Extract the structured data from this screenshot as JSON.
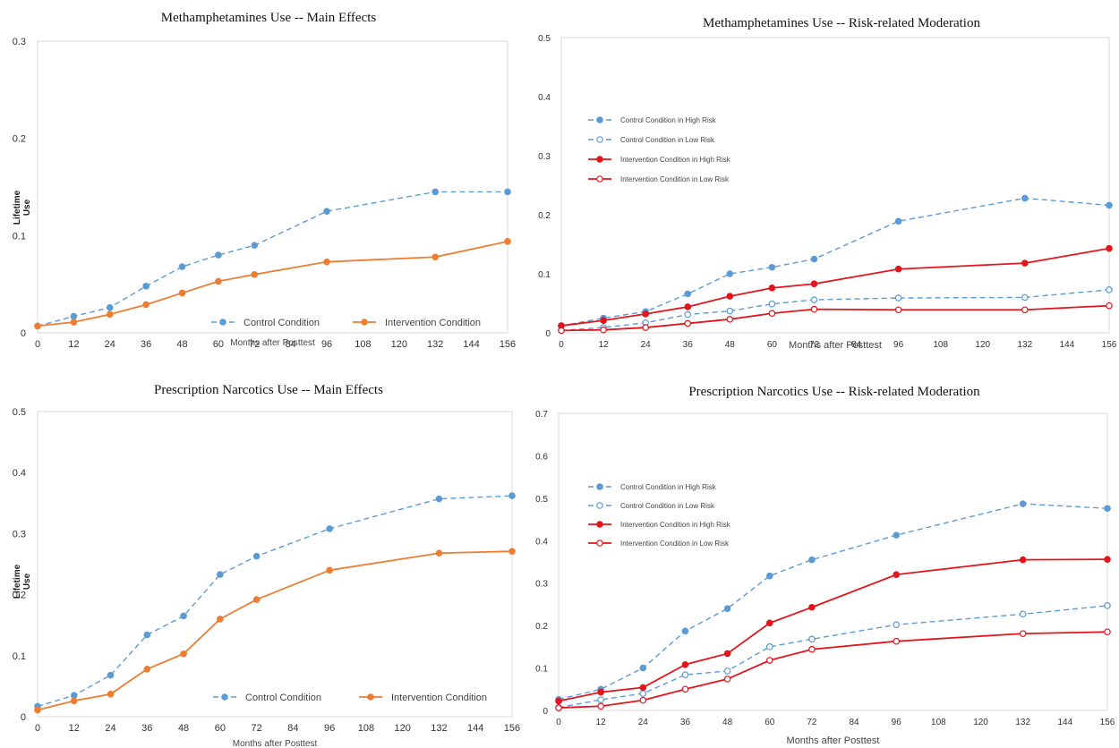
{
  "colors": {
    "control": "#5b9bd5",
    "intervention_main": "#ed7d31",
    "intervention_risk": "#e3141b"
  },
  "chart_data": [
    {
      "type": "line",
      "title": "Methamphetamines Use -- Main Effects",
      "xlabel": "Months after Posttest",
      "ylabel": "Lifetime Use",
      "x": [
        0,
        12,
        24,
        36,
        48,
        60,
        72,
        96,
        132,
        156
      ],
      "xticks": [
        "0",
        "12",
        "24",
        "36",
        "48",
        "60",
        "72",
        "84",
        "96",
        "108",
        "120",
        "132",
        "144",
        "156"
      ],
      "xlim": [
        0,
        156
      ],
      "yticks": [
        "0",
        "0.1",
        "0.2",
        "0.3"
      ],
      "ylim": [
        0,
        0.3
      ],
      "grid": false,
      "legend": "bottom-right",
      "series": [
        {
          "name": "Control Condition",
          "style": "dashed",
          "marker": "filled",
          "color": "#5b9bd5",
          "values": [
            0.007,
            0.017,
            0.026,
            0.048,
            0.068,
            0.08,
            0.09,
            0.125,
            0.145,
            0.145
          ]
        },
        {
          "name": "Intervention Condition",
          "style": "solid",
          "marker": "filled",
          "color": "#ed7d31",
          "values": [
            0.007,
            0.011,
            0.019,
            0.029,
            0.041,
            0.053,
            0.06,
            0.073,
            0.078,
            0.094
          ]
        }
      ]
    },
    {
      "type": "line",
      "title": "Methamphetamines Use -- Risk-related Moderation",
      "xlabel": "Months after Posttest",
      "ylabel": "",
      "x": [
        0,
        12,
        24,
        36,
        48,
        60,
        72,
        96,
        132,
        156
      ],
      "xticks": [
        "0",
        "12",
        "24",
        "36",
        "48",
        "60",
        "72",
        "84",
        "96",
        "108",
        "120",
        "132",
        "144",
        "156"
      ],
      "xlim": [
        0,
        156
      ],
      "yticks": [
        "0",
        "0.1",
        "0.2",
        "0.3",
        "0.4",
        "0.5"
      ],
      "ylim": [
        0,
        0.5
      ],
      "grid": false,
      "legend": "top-left",
      "series": [
        {
          "name": "Control Condition in High Risk",
          "style": "dashed",
          "marker": "filled",
          "color": "#5b9bd5",
          "values": [
            0.012,
            0.025,
            0.036,
            0.066,
            0.1,
            0.111,
            0.125,
            0.189,
            0.228,
            0.216
          ]
        },
        {
          "name": "Control Condition in Low Risk",
          "style": "dashed",
          "marker": "open",
          "color": "#5b9bd5",
          "values": [
            0.004,
            0.009,
            0.017,
            0.031,
            0.037,
            0.049,
            0.056,
            0.059,
            0.06,
            0.073
          ]
        },
        {
          "name": "Intervention Condition in High Risk",
          "style": "solid",
          "marker": "filled",
          "color": "#e3141b",
          "values": [
            0.012,
            0.021,
            0.032,
            0.044,
            0.062,
            0.076,
            0.083,
            0.108,
            0.118,
            0.143
          ]
        },
        {
          "name": "Intervention Condition in Low Risk",
          "style": "solid",
          "marker": "open",
          "color": "#e3141b",
          "values": [
            0.004,
            0.005,
            0.009,
            0.016,
            0.023,
            0.033,
            0.04,
            0.039,
            0.039,
            0.046
          ]
        }
      ]
    },
    {
      "type": "line",
      "title": "Prescription Narcotics Use -- Main Effects",
      "xlabel": "Months after Posttest",
      "ylabel": "Lifetime Use",
      "x": [
        0,
        12,
        24,
        36,
        48,
        60,
        72,
        96,
        132,
        156
      ],
      "xticks": [
        "0",
        "12",
        "24",
        "36",
        "48",
        "60",
        "72",
        "84",
        "96",
        "108",
        "120",
        "132",
        "144",
        "156"
      ],
      "xlim": [
        0,
        156
      ],
      "yticks": [
        "0",
        "0.1",
        "0.2",
        "0.3",
        "0.4",
        "0.5"
      ],
      "ylim": [
        0,
        0.5
      ],
      "grid": false,
      "legend": "bottom-right",
      "series": [
        {
          "name": "Control Condition",
          "style": "dashed",
          "marker": "filled",
          "color": "#5b9bd5",
          "values": [
            0.017,
            0.035,
            0.068,
            0.134,
            0.165,
            0.233,
            0.263,
            0.308,
            0.357,
            0.362
          ]
        },
        {
          "name": "Intervention Condition",
          "style": "solid",
          "marker": "filled",
          "color": "#ed7d31",
          "values": [
            0.011,
            0.026,
            0.037,
            0.078,
            0.103,
            0.16,
            0.192,
            0.24,
            0.268,
            0.271
          ]
        }
      ]
    },
    {
      "type": "line",
      "title": "Prescription Narcotics Use -- Risk-related Moderation",
      "xlabel": "Months after Posttest",
      "ylabel": "",
      "x": [
        0,
        12,
        24,
        36,
        48,
        60,
        72,
        96,
        132,
        156
      ],
      "xticks": [
        "0",
        "12",
        "24",
        "36",
        "48",
        "60",
        "72",
        "84",
        "96",
        "108",
        "120",
        "132",
        "144",
        "156"
      ],
      "xlim": [
        0,
        156
      ],
      "yticks": [
        "0",
        "0.1",
        "0.2",
        "0.3",
        "0.4",
        "0.5",
        "0.6",
        "0.7"
      ],
      "ylim": [
        0,
        0.7
      ],
      "grid": false,
      "legend": "top-left",
      "series": [
        {
          "name": "Control Condition in High Risk",
          "style": "dashed",
          "marker": "filled",
          "color": "#5b9bd5",
          "values": [
            0.026,
            0.05,
            0.1,
            0.187,
            0.24,
            0.317,
            0.355,
            0.413,
            0.487,
            0.476
          ]
        },
        {
          "name": "Control Condition in Low Risk",
          "style": "dashed",
          "marker": "open",
          "color": "#5b9bd5",
          "values": [
            0.007,
            0.025,
            0.04,
            0.084,
            0.093,
            0.15,
            0.168,
            0.202,
            0.227,
            0.247
          ]
        },
        {
          "name": "Intervention Condition in High Risk",
          "style": "solid",
          "marker": "filled",
          "color": "#e3141b",
          "values": [
            0.022,
            0.043,
            0.054,
            0.108,
            0.134,
            0.206,
            0.243,
            0.32,
            0.355,
            0.356
          ]
        },
        {
          "name": "Intervention Condition in Low Risk",
          "style": "solid",
          "marker": "open",
          "color": "#e3141b",
          "values": [
            0.006,
            0.01,
            0.024,
            0.05,
            0.074,
            0.118,
            0.144,
            0.163,
            0.181,
            0.185
          ]
        }
      ]
    }
  ]
}
